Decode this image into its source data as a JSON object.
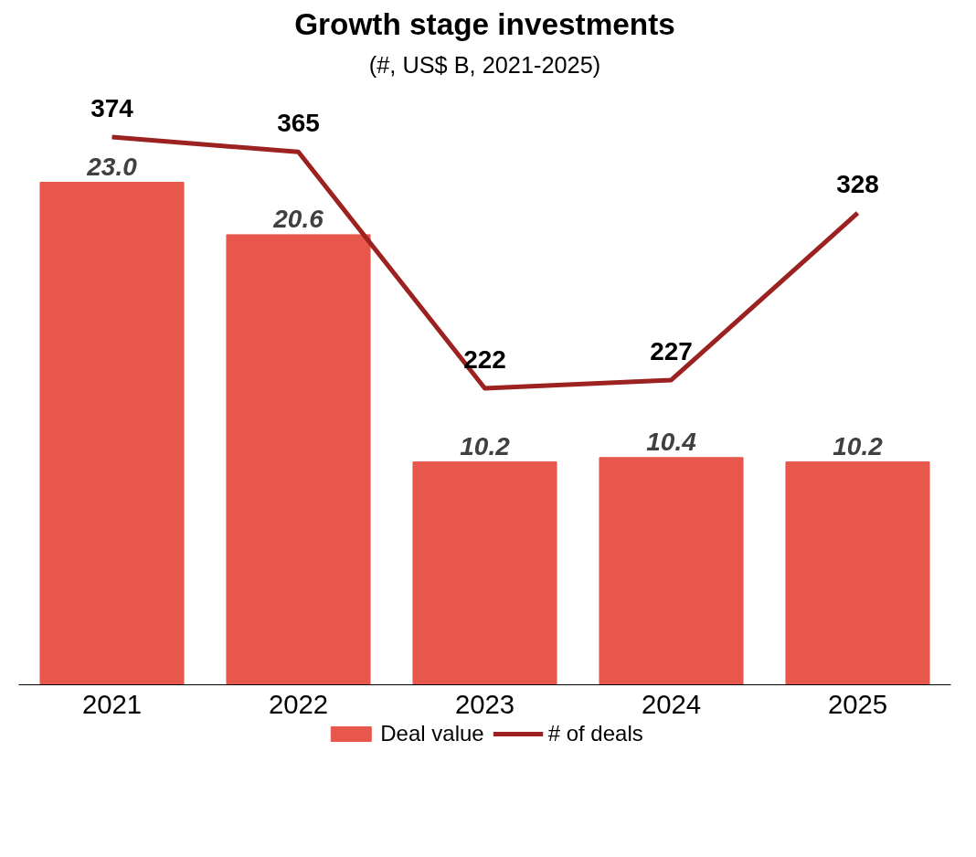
{
  "chart_data": {
    "type": "bar",
    "title": "Growth stage investments",
    "subtitle": "(#, US$ B, 2021-2025)",
    "categories": [
      "2021",
      "2022",
      "2023",
      "2024",
      "2025"
    ],
    "series": [
      {
        "name": "Deal value",
        "color": "#e8574c",
        "values": [
          23.0,
          20.6,
          10.2,
          10.4,
          10.2
        ],
        "value_labels": [
          "23.0",
          "20.6",
          "10.2",
          "10.4",
          "10.2"
        ]
      },
      {
        "name": "# of deals",
        "type": "line",
        "axis": "y2",
        "color": "#9b2220",
        "values": [
          374,
          365,
          222,
          227,
          328
        ],
        "value_labels": [
          "374",
          "365",
          "222",
          "227",
          "328"
        ]
      }
    ],
    "tick_labels": "x",
    "legend": "bottom",
    "line_style": "solid"
  }
}
